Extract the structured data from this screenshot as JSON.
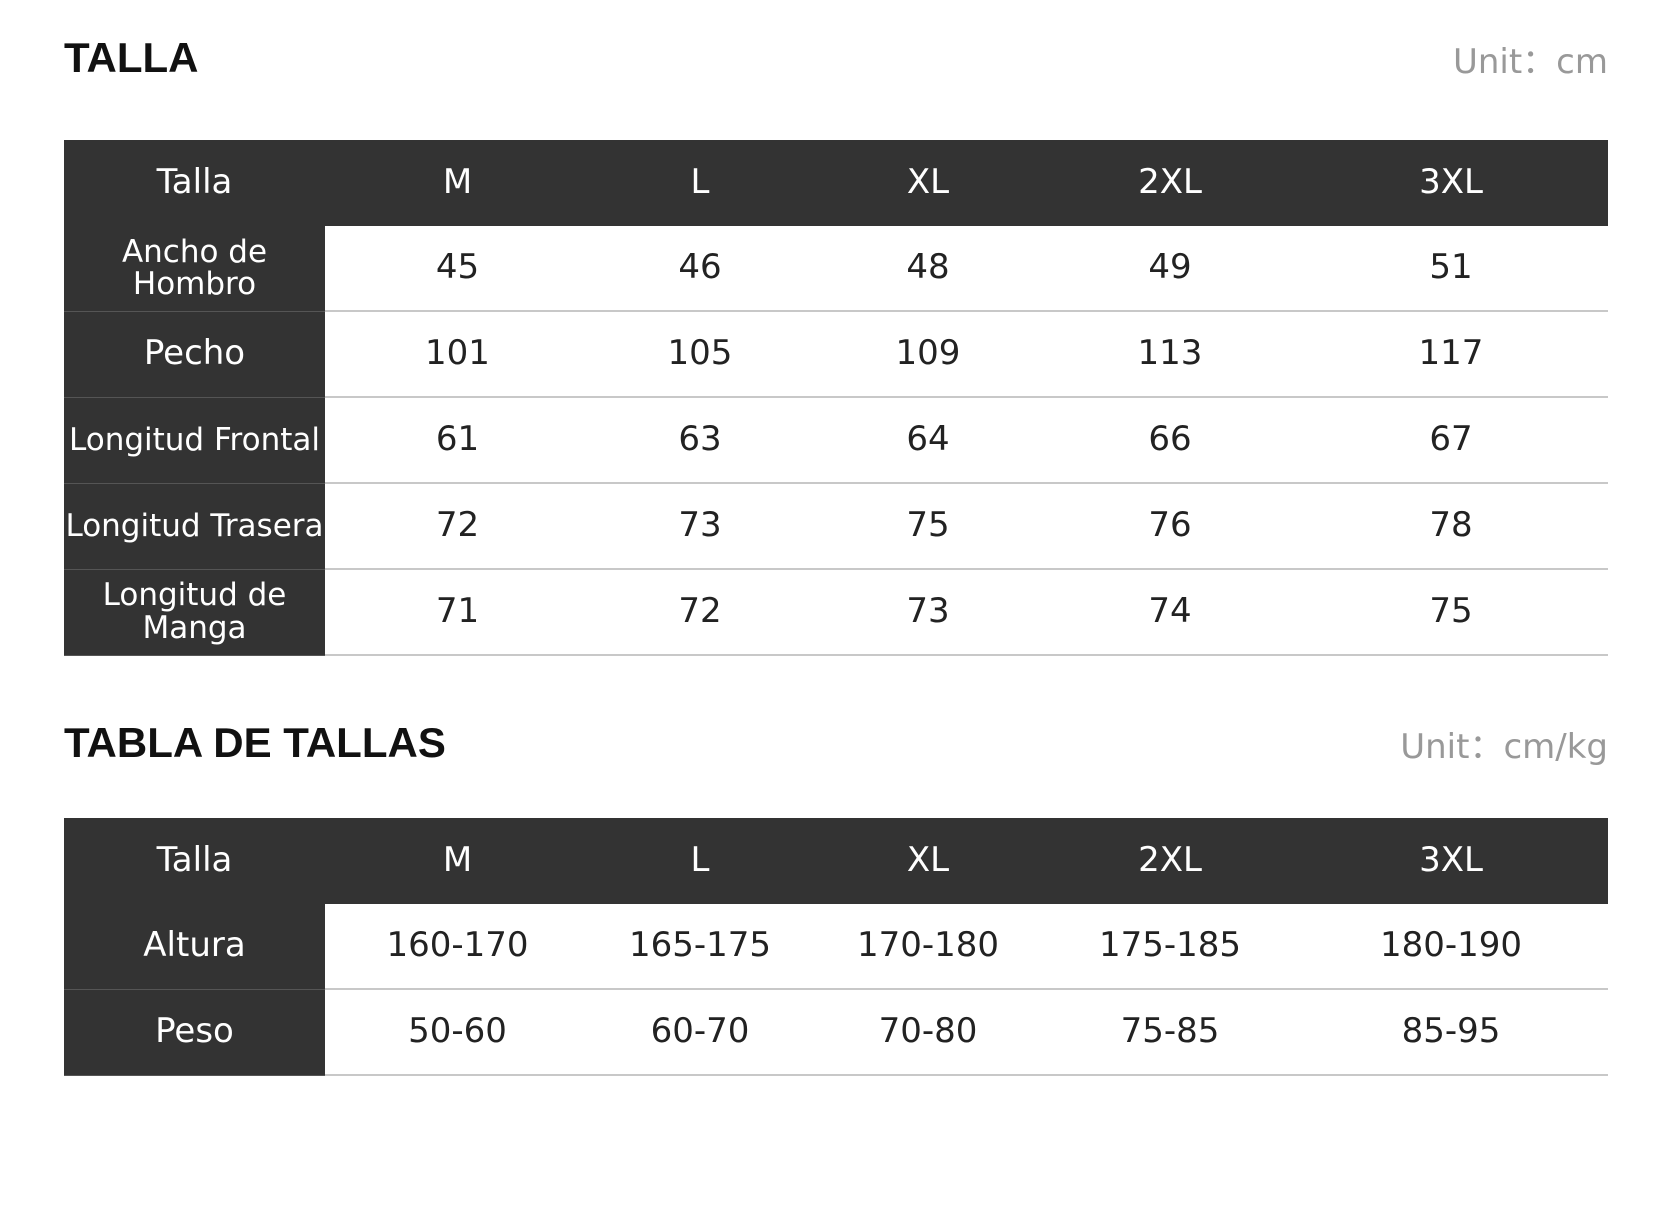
{
  "sections": [
    {
      "title": "TALLA",
      "unit": "Unit：cm",
      "table": {
        "header": [
          "Talla",
          "M",
          "L",
          "XL",
          "2XL",
          "3XL"
        ],
        "rows": [
          [
            "Ancho de Hombro",
            45,
            46,
            48,
            49,
            51
          ],
          [
            "Pecho",
            101,
            105,
            109,
            113,
            117
          ],
          [
            "Longitud Frontal",
            61,
            63,
            64,
            66,
            67
          ],
          [
            "Longitud Trasera",
            72,
            73,
            75,
            76,
            78
          ],
          [
            "Longitud de Manga",
            71,
            72,
            73,
            74,
            75
          ]
        ]
      }
    },
    {
      "title": "TABLA DE TALLAS",
      "unit": "Unit：cm/kg",
      "table": {
        "header": [
          "Talla",
          "M",
          "L",
          "XL",
          "2XL",
          "3XL"
        ],
        "rows": [
          [
            "Altura",
            "160-170",
            "165-175",
            "170-180",
            "175-185",
            "180-190"
          ],
          [
            "Peso",
            "50-60",
            "60-70",
            "70-80",
            "75-85",
            "85-95"
          ]
        ]
      }
    }
  ]
}
